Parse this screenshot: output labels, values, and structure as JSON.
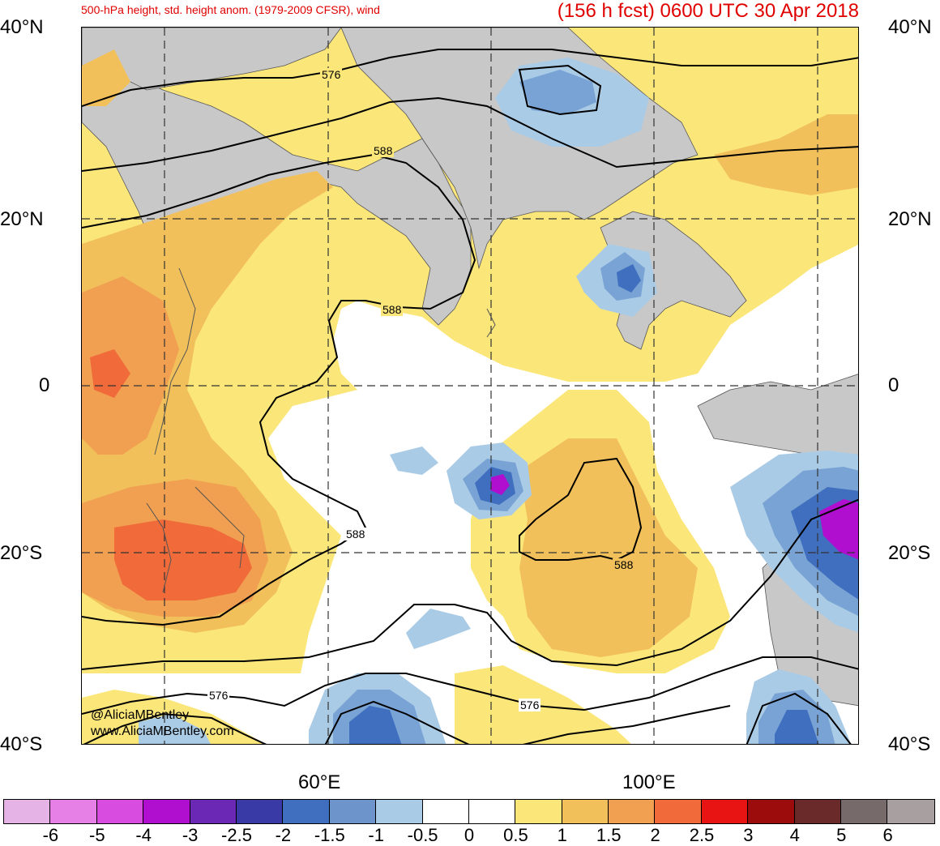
{
  "header": {
    "title_left": "500-hPa height, std. height anom. (1979-2009 CFSR), wind",
    "title_right": "(156 h fcst) 0600 UTC 30 Apr 2018"
  },
  "map": {
    "lat_labels_left": [
      "40°N",
      "20°N",
      "0",
      "20°S",
      "40°S"
    ],
    "lat_labels_right": [
      "40°N",
      "20°N",
      "0",
      "20°S",
      "40°S"
    ],
    "lon_labels": [
      "60°E",
      "100°E"
    ],
    "contour_labels": [
      "576",
      "588",
      "588",
      "588",
      "588",
      "576",
      "576"
    ],
    "credit_handle": "@AliciaMBentley",
    "credit_site": "www.AliciaMBentley.com",
    "colors": {
      "land": "#c8c8c8",
      "anom_pos_05": "#fbe67a",
      "anom_pos_1": "#f2c05a",
      "anom_pos_15": "#f0a050",
      "anom_pos_2": "#f06a3a",
      "anom_neg_05": "#aacbe6",
      "anom_neg_1": "#78a3d4",
      "anom_neg_15": "#3f6fbe",
      "anom_neg_2": "#3a3aa6",
      "anom_neg_25": "#6a28b4",
      "anom_neg_3": "#b10fcf"
    }
  },
  "colorbar": {
    "colors": [
      "#e6b3e6",
      "#e680e6",
      "#d94ce0",
      "#b10fcf",
      "#6a28b4",
      "#3a3aa6",
      "#3f6fbe",
      "#6d95cc",
      "#aacbe6",
      "#ffffff",
      "#ffffff",
      "#fbe67a",
      "#f2c05a",
      "#f0a050",
      "#f06a3a",
      "#e81414",
      "#9c0c0c",
      "#6a2a2a",
      "#766a6a",
      "#a8a0a0"
    ],
    "ticks": [
      "-6",
      "-5",
      "-4",
      "-3",
      "-2.5",
      "-2",
      "-1.5",
      "-1",
      "-0.5",
      "0",
      "0.5",
      "1",
      "1.5",
      "2",
      "2.5",
      "3",
      "4",
      "5",
      "6"
    ]
  }
}
